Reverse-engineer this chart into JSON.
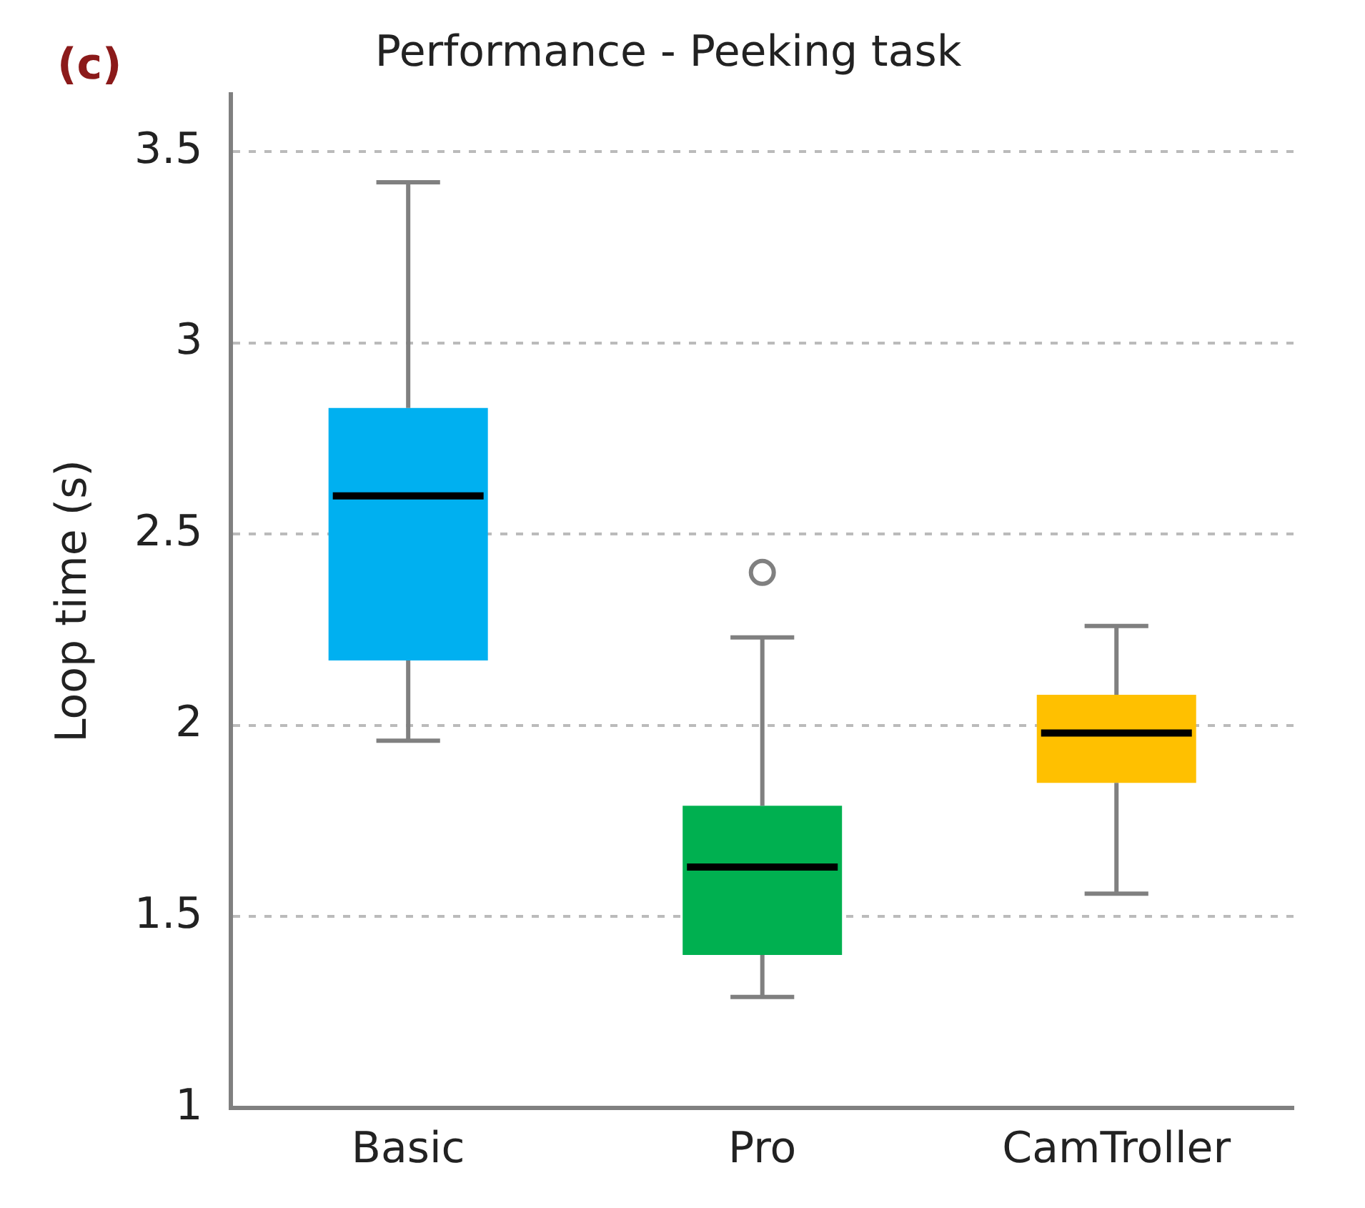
{
  "chart_data": {
    "type": "box",
    "title": "Performance - Peeking task",
    "ylabel": "Loop time (s)",
    "annotations": [
      "(c)"
    ],
    "categories": [
      "Basic",
      "Pro",
      "CamTroller"
    ],
    "colors": [
      "#00b0f0",
      "#00b050",
      "#ffc000"
    ],
    "boxes": [
      {
        "low": 1.96,
        "q1": 2.17,
        "median": 2.6,
        "q3": 2.83,
        "high": 3.42
      },
      {
        "low": 1.29,
        "q1": 1.4,
        "median": 1.63,
        "q3": 1.79,
        "high": 2.23,
        "outliers": [
          2.4
        ]
      },
      {
        "low": 1.56,
        "q1": 1.85,
        "median": 1.98,
        "q3": 2.08,
        "high": 2.26
      }
    ],
    "ylim": [
      1,
      3.65
    ],
    "yticks": [
      1,
      1.5,
      2,
      2.5,
      3,
      3.5
    ],
    "grid": "y"
  }
}
